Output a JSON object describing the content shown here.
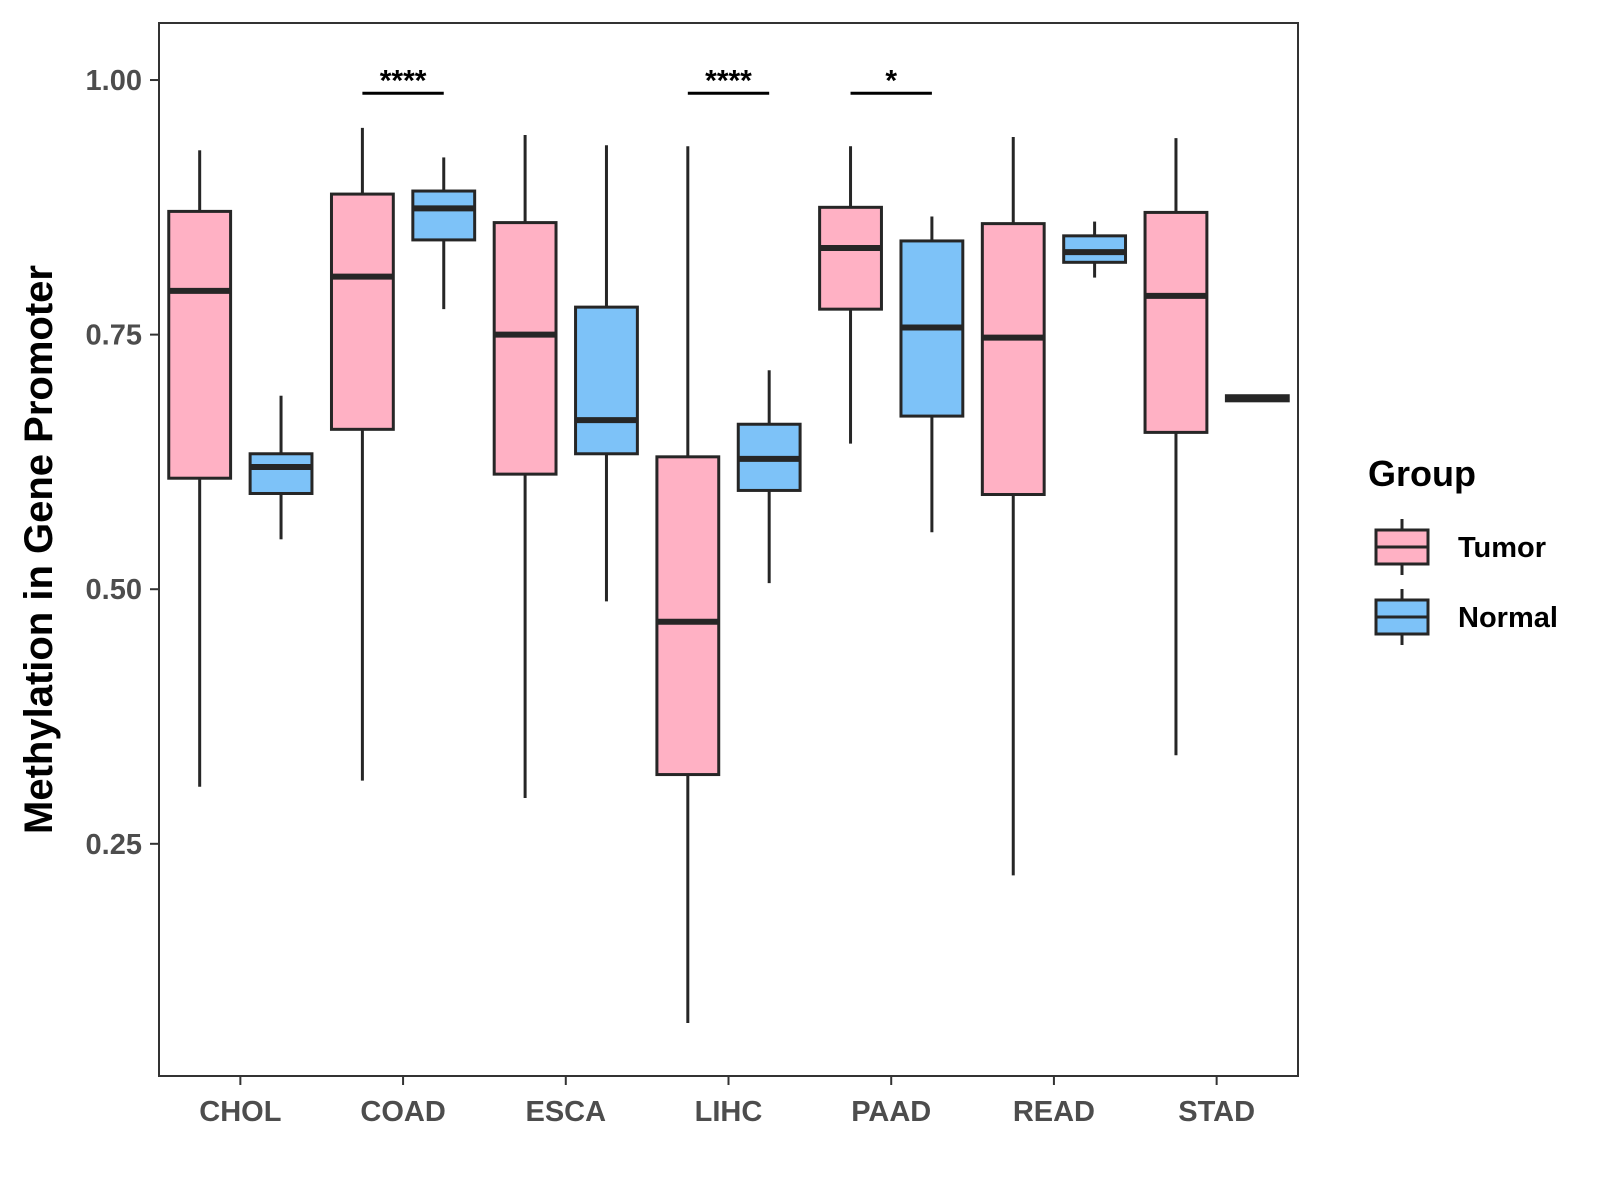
{
  "chart_data": {
    "type": "boxplot",
    "title": "",
    "xlabel": "",
    "ylabel": "Methylation in Gene Promoter",
    "ylim": [
      0.022,
      1.056
    ],
    "yticks": [
      0.25,
      0.5,
      0.75,
      1.0
    ],
    "ytick_labels": [
      "0.25",
      "0.50",
      "0.75",
      "1.00"
    ],
    "categories": [
      "CHOL",
      "COAD",
      "ESCA",
      "LIHC",
      "PAAD",
      "READ",
      "STAD"
    ],
    "legend": {
      "title": "Group",
      "position": "right",
      "entries": [
        {
          "label": "Tumor",
          "color": "#FFB1C4"
        },
        {
          "label": "Normal",
          "color": "#7DC2F8"
        }
      ]
    },
    "series": [
      {
        "name": "Tumor",
        "color": "#FFB1C4",
        "boxes": [
          {
            "category": "CHOL",
            "min": 0.306,
            "q1": 0.609,
            "median": 0.793,
            "q3": 0.871,
            "max": 0.931
          },
          {
            "category": "COAD",
            "min": 0.312,
            "q1": 0.657,
            "median": 0.807,
            "q3": 0.888,
            "max": 0.953
          },
          {
            "category": "ESCA",
            "min": 0.295,
            "q1": 0.613,
            "median": 0.75,
            "q3": 0.86,
            "max": 0.946
          },
          {
            "category": "LIHC",
            "min": 0.074,
            "q1": 0.318,
            "median": 0.468,
            "q3": 0.63,
            "max": 0.935
          },
          {
            "category": "PAAD",
            "min": 0.643,
            "q1": 0.775,
            "median": 0.835,
            "q3": 0.875,
            "max": 0.935
          },
          {
            "category": "READ",
            "min": 0.219,
            "q1": 0.593,
            "median": 0.747,
            "q3": 0.859,
            "max": 0.944
          },
          {
            "category": "STAD",
            "min": 0.337,
            "q1": 0.654,
            "median": 0.788,
            "q3": 0.87,
            "max": 0.943
          }
        ]
      },
      {
        "name": "Normal",
        "color": "#7DC2F8",
        "boxes": [
          {
            "category": "CHOL",
            "min": 0.549,
            "q1": 0.594,
            "median": 0.62,
            "q3": 0.633,
            "max": 0.69
          },
          {
            "category": "COAD",
            "min": 0.775,
            "q1": 0.843,
            "median": 0.874,
            "q3": 0.891,
            "max": 0.924
          },
          {
            "category": "ESCA",
            "min": 0.488,
            "q1": 0.633,
            "median": 0.666,
            "q3": 0.777,
            "max": 0.936
          },
          {
            "category": "LIHC",
            "min": 0.506,
            "q1": 0.597,
            "median": 0.628,
            "q3": 0.662,
            "max": 0.715
          },
          {
            "category": "PAAD",
            "min": 0.556,
            "q1": 0.67,
            "median": 0.757,
            "q3": 0.842,
            "max": 0.866
          },
          {
            "category": "READ",
            "min": 0.806,
            "q1": 0.821,
            "median": 0.831,
            "q3": 0.847,
            "max": 0.861
          },
          {
            "category": "STAD",
            "min": 0.685,
            "q1": 0.685,
            "median": 0.688,
            "q3": 0.69,
            "max": 0.69
          }
        ]
      }
    ],
    "annotations": [
      {
        "category": "COAD",
        "label": "****",
        "y": 0.987
      },
      {
        "category": "LIHC",
        "label": "****",
        "y": 0.987
      },
      {
        "category": "PAAD",
        "label": "*",
        "y": 0.987
      }
    ]
  }
}
